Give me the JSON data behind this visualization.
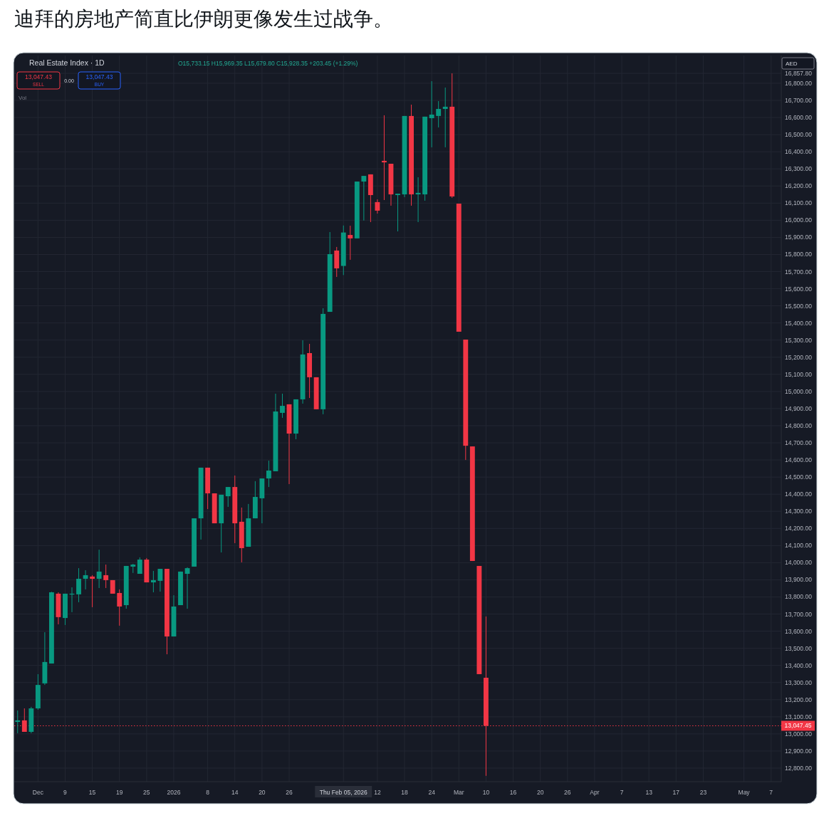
{
  "chart_data": {
    "type": "candlestick",
    "title": "迪拜的房地产简直比伊朗更像发生过战争。",
    "subtitle": "Real Estate Index · 1D",
    "categories": [
      null,
      null,
      null,
      "Dec",
      null,
      null,
      null,
      "9",
      null,
      null,
      null,
      "15",
      null,
      null,
      null,
      "19",
      null,
      null,
      null,
      "25",
      null,
      null,
      null,
      "2026",
      null,
      null,
      null,
      null,
      "8",
      null,
      null,
      null,
      "14",
      null,
      null,
      null,
      "20",
      null,
      null,
      null,
      "26",
      null,
      null,
      null,
      null,
      null,
      null,
      null,
      "Thu Feb 05, 2026",
      null,
      null,
      null,
      null,
      "12",
      null,
      null,
      null,
      "18",
      null,
      null,
      null,
      "24",
      null,
      null,
      null,
      "Mar",
      null,
      null,
      null,
      "10",
      null,
      null,
      null,
      "16",
      null,
      null,
      null,
      "20",
      null,
      null,
      null,
      "26",
      null,
      null,
      null,
      "Apr",
      null,
      null,
      null,
      "7",
      null,
      null,
      null,
      "13",
      null,
      null,
      null,
      "17",
      null,
      null,
      null,
      "23",
      null,
      null,
      null,
      null,
      null,
      "May",
      null,
      null,
      null,
      "7",
      null
    ],
    "ohlc": [
      [
        13070,
        13137,
        13004,
        13079
      ],
      [
        13079,
        13149,
        13012,
        13012
      ],
      [
        13012,
        13158,
        13004,
        13149
      ],
      [
        13149,
        13349,
        13141,
        13286
      ],
      [
        13295,
        13594,
        13286,
        13420
      ],
      [
        13411,
        13830,
        13411,
        13827
      ],
      [
        13819,
        13827,
        13640,
        13682
      ],
      [
        13677,
        13819,
        13636,
        13819
      ],
      [
        13815,
        13856,
        13711,
        13819
      ],
      [
        13815,
        13968,
        13769,
        13906
      ],
      [
        13906,
        13956,
        13844,
        13927
      ],
      [
        13919,
        13927,
        13740,
        13906
      ],
      [
        13906,
        14076,
        13852,
        13948
      ],
      [
        13927,
        13989,
        13852,
        13898
      ],
      [
        13898,
        13898,
        13819,
        13819
      ],
      [
        13823,
        13844,
        13632,
        13744
      ],
      [
        13752,
        13981,
        13731,
        13981
      ],
      [
        13977,
        13993,
        13940,
        13989
      ],
      [
        13935,
        14031,
        13935,
        14018
      ],
      [
        14018,
        14027,
        13885,
        13885
      ],
      [
        13885,
        13952,
        13827,
        13898
      ],
      [
        13894,
        13964,
        13831,
        13964
      ],
      [
        13964,
        13964,
        13465,
        13569
      ],
      [
        13569,
        13810,
        13569,
        13744
      ],
      [
        13752,
        13948,
        13752,
        13948
      ],
      [
        13935,
        13973,
        13731,
        13968
      ],
      [
        13977,
        14259,
        13977,
        14259
      ],
      [
        14259,
        14555,
        14135,
        14555
      ],
      [
        14555,
        14555,
        14313,
        14405
      ],
      [
        14405,
        14405,
        14230,
        14230
      ],
      [
        14230,
        14397,
        14060,
        14397
      ],
      [
        14388,
        14442,
        14326,
        14442
      ],
      [
        14442,
        14509,
        14114,
        14230
      ],
      [
        14239,
        14322,
        14002,
        14085
      ],
      [
        14093,
        14343,
        14093,
        14259
      ],
      [
        14259,
        14476,
        14259,
        14384
      ],
      [
        14376,
        14492,
        14230,
        14492
      ],
      [
        14492,
        14596,
        14442,
        14538
      ],
      [
        14534,
        14987,
        14534,
        14883
      ],
      [
        14875,
        14987,
        14846,
        14916
      ],
      [
        14925,
        14925,
        14459,
        14754
      ],
      [
        14754,
        14954,
        14721,
        14954
      ],
      [
        14954,
        15299,
        14929,
        15216
      ],
      [
        15224,
        15278,
        14962,
        15083
      ],
      [
        15083,
        15083,
        14896,
        14896
      ],
      [
        14896,
        15486,
        14867,
        15453
      ],
      [
        15465,
        15931,
        15465,
        15802
      ],
      [
        15823,
        15844,
        15669,
        15719
      ],
      [
        15733.15,
        15969.35,
        15679.8,
        15928.35
      ],
      [
        15914,
        15968,
        15769,
        15894
      ],
      [
        15894,
        16226,
        15894,
        16226
      ],
      [
        16226,
        16259,
        15998,
        16259
      ],
      [
        16268,
        16268,
        15989,
        16147
      ],
      [
        16106,
        16122,
        16039,
        16056
      ],
      [
        16347,
        16613,
        16118,
        16338
      ],
      [
        16330,
        16330,
        16085,
        16151
      ],
      [
        16147,
        16155,
        15935,
        16155
      ],
      [
        16151,
        16609,
        16135,
        16609
      ],
      [
        16609,
        16675,
        16085,
        16151
      ],
      [
        16151,
        16251,
        15989,
        16160
      ],
      [
        16151,
        16605,
        16114,
        16605
      ],
      [
        16596,
        16812,
        16426,
        16617
      ],
      [
        16609,
        16696,
        16542,
        16650
      ],
      [
        16650,
        16775,
        16426,
        16663
      ],
      [
        16663,
        16857.8,
        16131,
        16139
      ],
      [
        16097,
        16097,
        15349,
        15349
      ],
      [
        15303,
        15303,
        14600,
        14683
      ],
      [
        14679,
        14679,
        14010,
        14010
      ],
      [
        13981,
        13981,
        13349,
        13349
      ],
      [
        13328,
        13686,
        12755,
        13047.45
      ],
      null,
      null,
      null,
      null,
      null,
      null,
      null,
      null,
      null,
      null,
      null,
      null,
      null,
      null,
      null,
      null,
      null,
      null,
      null,
      null,
      null,
      null,
      null,
      null,
      null,
      null,
      null,
      null,
      null,
      null,
      null,
      null,
      null,
      null,
      null,
      null,
      null,
      null,
      null,
      null,
      null,
      null,
      null
    ],
    "colors": [
      "#089981",
      "#f23645",
      "#089981",
      "#089981",
      "#089981",
      "#089981",
      "#f23645",
      "#089981",
      "#089981",
      "#089981",
      "#089981",
      "#f23645",
      "#089981",
      "#f23645",
      "#f23645",
      "#f23645",
      "#089981",
      "#089981",
      "#089981",
      "#f23645",
      "#089981",
      "#089981",
      "#f23645",
      "#089981",
      "#089981",
      "#089981",
      "#089981",
      "#089981",
      "#f23645",
      "#f23645",
      "#089981",
      "#089981",
      "#f23645",
      "#f23645",
      "#089981",
      "#089981",
      "#089981",
      "#089981",
      "#089981",
      "#089981",
      "#f23645",
      "#089981",
      "#089981",
      "#f23645",
      "#f23645",
      "#089981",
      "#089981",
      "#f23645",
      "#089981",
      "#f23645",
      "#089981",
      "#089981",
      "#f23645",
      "#f23645",
      "#f23645",
      "#f23645",
      "#089981",
      "#089981",
      "#f23645",
      "#089981",
      "#089981",
      "#089981",
      "#089981",
      "#089981",
      "#f23645",
      "#f23645",
      "#f23645",
      "#f23645",
      "#f23645",
      "#f23645",
      null,
      null,
      null,
      null,
      null,
      null,
      null,
      null,
      null,
      null,
      null,
      null,
      null,
      null,
      null,
      null,
      null,
      null,
      null,
      null,
      null,
      null,
      null,
      null,
      null,
      null,
      null,
      null,
      null,
      null,
      null,
      null,
      null,
      null,
      null,
      null,
      null,
      null,
      null,
      null,
      null,
      null,
      null
    ],
    "ylim": [
      12721,
      16962
    ],
    "yticks": [
      {
        "value": 12800,
        "label": "12,800.00"
      },
      {
        "value": 12900,
        "label": "12,900.00"
      },
      {
        "value": 13000,
        "label": "13,000.00"
      },
      {
        "value": 13100,
        "label": "13,100.00"
      },
      {
        "value": 13200,
        "label": "13,200.00"
      },
      {
        "value": 13300,
        "label": "13,300.00"
      },
      {
        "value": 13400,
        "label": "13,400.00"
      },
      {
        "value": 13500,
        "label": "13,500.00"
      },
      {
        "value": 13600,
        "label": "13,600.00"
      },
      {
        "value": 13700,
        "label": "13,700.00"
      },
      {
        "value": 13800,
        "label": "13,800.00"
      },
      {
        "value": 13900,
        "label": "13,900.00"
      },
      {
        "value": 14000,
        "label": "14,000.00"
      },
      {
        "value": 14100,
        "label": "14,100.00"
      },
      {
        "value": 14200,
        "label": "14,200.00"
      },
      {
        "value": 14300,
        "label": "14,300.00"
      },
      {
        "value": 14400,
        "label": "14,400.00"
      },
      {
        "value": 14500,
        "label": "14,500.00"
      },
      {
        "value": 14600,
        "label": "14,600.00"
      },
      {
        "value": 14700,
        "label": "14,700.00"
      },
      {
        "value": 14800,
        "label": "14,800.00"
      },
      {
        "value": 14900,
        "label": "14,900.00"
      },
      {
        "value": 15000,
        "label": "15,000.00"
      },
      {
        "value": 15100,
        "label": "15,100.00"
      },
      {
        "value": 15200,
        "label": "15,200.00"
      },
      {
        "value": 15300,
        "label": "15,300.00"
      },
      {
        "value": 15400,
        "label": "15,400.00"
      },
      {
        "value": 15500,
        "label": "15,500.00"
      },
      {
        "value": 15600,
        "label": "15,600.00"
      },
      {
        "value": 15700,
        "label": "15,700.00"
      },
      {
        "value": 15800,
        "label": "15,800.00"
      },
      {
        "value": 15900,
        "label": "15,900.00"
      },
      {
        "value": 16000,
        "label": "16,000.00"
      },
      {
        "value": 16100,
        "label": "16,100.00"
      },
      {
        "value": 16200,
        "label": "16,200.00"
      },
      {
        "value": 16300,
        "label": "16,300.00"
      },
      {
        "value": 16400,
        "label": "16,400.00"
      },
      {
        "value": 16500,
        "label": "16,500.00"
      },
      {
        "value": 16600,
        "label": "16,600.00"
      },
      {
        "value": 16700,
        "label": "16,700.00"
      },
      {
        "value": 16800,
        "label": "16,800.00"
      },
      {
        "value": 16857.8,
        "label": "16,857.80"
      }
    ],
    "grid": true,
    "ref_lines": [
      {
        "axis": "y",
        "value": 13047.45,
        "label": "13,047.45",
        "color": "#f23645",
        "line_style": "dotted"
      }
    ],
    "annotations": [
      "O15,733.15 H15,969.35 L15,679.80 C15,928.35 +203.45 (+1.29%)",
      "13,047.43 SELL",
      "0.00",
      "13,047.43 BUY",
      "Vol",
      "AED"
    ]
  }
}
